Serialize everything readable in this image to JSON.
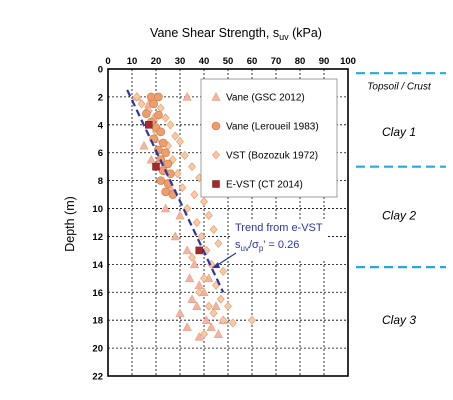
{
  "chart_data": {
    "type": "scatter",
    "title": {
      "main": "Vane Shear Strength, s",
      "sub": "uv",
      "unit": " (kPa)"
    },
    "ylabel": "Depth (m)",
    "xlim": [
      0,
      100
    ],
    "ylim": [
      0,
      22
    ],
    "x_ticks": [
      "0",
      "10",
      "20",
      "30",
      "40",
      "50",
      "60",
      "70",
      "80",
      "90",
      "100"
    ],
    "y_ticks": [
      "0",
      "2",
      "4",
      "6",
      "8",
      "10",
      "12",
      "14",
      "16",
      "18",
      "20",
      "22"
    ],
    "grid": true,
    "legend_position": "top-right",
    "series": [
      {
        "name": "Vane (GSC 2012)",
        "marker": "triangle",
        "color": "#f2b3a0",
        "points": [
          [
            12,
            2
          ],
          [
            17,
            2.5
          ],
          [
            33,
            2
          ],
          [
            16,
            3
          ],
          [
            19,
            3.5
          ],
          [
            15,
            5.5
          ],
          [
            20,
            5
          ],
          [
            18,
            6.5
          ],
          [
            23,
            7
          ],
          [
            26,
            8.5
          ],
          [
            24,
            10
          ],
          [
            30,
            10.5
          ],
          [
            28,
            12
          ],
          [
            33,
            13
          ],
          [
            36,
            14
          ],
          [
            34,
            15
          ],
          [
            38,
            15.5
          ],
          [
            40,
            16
          ],
          [
            42,
            15
          ],
          [
            35,
            16.5
          ],
          [
            37,
            17
          ],
          [
            45,
            17
          ],
          [
            30,
            17.5
          ],
          [
            41,
            18
          ],
          [
            43,
            18.5
          ],
          [
            33,
            18.5
          ],
          [
            46,
            19
          ],
          [
            38,
            19.2
          ],
          [
            48,
            18
          ]
        ]
      },
      {
        "name": "Vane (Leroueil 1983)",
        "marker": "circle",
        "color": "#ee9e6e",
        "points": [
          [
            18,
            2
          ],
          [
            21,
            2
          ],
          [
            19,
            2.5
          ],
          [
            16,
            3.2
          ],
          [
            21,
            3.3
          ],
          [
            18,
            3.8
          ],
          [
            20,
            4.2
          ],
          [
            22,
            4.5
          ],
          [
            19,
            5
          ],
          [
            23,
            5.3
          ],
          [
            21,
            5.8
          ],
          [
            24,
            6
          ],
          [
            22,
            6.5
          ],
          [
            25,
            6.8
          ],
          [
            23,
            7.3
          ],
          [
            26,
            7.5
          ],
          [
            22,
            8
          ],
          [
            25,
            8.2
          ],
          [
            24,
            8.8
          ],
          [
            27,
            9
          ]
        ]
      },
      {
        "name": "VST (Bozozuk 1972)",
        "marker": "diamond",
        "color": "#f8c9a6",
        "points": [
          [
            12,
            2
          ],
          [
            14,
            2.5
          ],
          [
            17,
            3
          ],
          [
            22,
            2.8
          ],
          [
            24,
            3.5
          ],
          [
            26,
            4
          ],
          [
            20,
            4.5
          ],
          [
            28,
            4.8
          ],
          [
            25,
            5.5
          ],
          [
            30,
            5.2
          ],
          [
            27,
            6.5
          ],
          [
            32,
            6.2
          ],
          [
            35,
            7
          ],
          [
            29,
            7.5
          ],
          [
            38,
            7.8
          ],
          [
            31,
            8.5
          ],
          [
            36,
            9
          ],
          [
            40,
            9.5
          ],
          [
            33,
            10
          ],
          [
            42,
            10.5
          ],
          [
            37,
            11
          ],
          [
            44,
            11.5
          ],
          [
            39,
            12
          ],
          [
            46,
            12.5
          ],
          [
            41,
            13
          ],
          [
            35,
            13.5
          ],
          [
            43,
            14
          ],
          [
            48,
            14.5
          ],
          [
            40,
            15
          ],
          [
            45,
            15.5
          ],
          [
            38,
            16
          ],
          [
            47,
            16.5
          ],
          [
            42,
            17
          ],
          [
            50,
            17
          ],
          [
            44,
            17.5
          ],
          [
            48,
            18
          ],
          [
            60,
            18
          ],
          [
            52,
            18.2
          ],
          [
            40,
            19
          ]
        ]
      },
      {
        "name": "E-VST (CT 2014)",
        "marker": "square",
        "color": "#a82828",
        "points": [
          [
            17,
            4
          ],
          [
            20,
            7
          ],
          [
            38,
            13
          ]
        ]
      }
    ],
    "trend": {
      "color": "#2a35a8",
      "points": [
        [
          8,
          1.5
        ],
        [
          48,
          16
        ]
      ],
      "label": "Trend from e-VST",
      "formula": {
        "s": "s",
        "s_sub": "uv",
        "slash": "/",
        "sigma": "σ",
        "sigma_sub": "p",
        "rest": "' = 0.26"
      }
    },
    "layers": [
      {
        "label": "Topsoil / Crust",
        "label_depth": 1.2,
        "small": true
      },
      {
        "label": "Clay 1",
        "label_depth": 4.5,
        "small": false
      },
      {
        "label": "Clay 2",
        "label_depth": 10.5,
        "small": false
      },
      {
        "label": "Clay 3",
        "label_depth": 18,
        "small": false
      }
    ],
    "boundaries": [
      0.3,
      7,
      14.2
    ],
    "boundary_color": "#29a8e0"
  }
}
